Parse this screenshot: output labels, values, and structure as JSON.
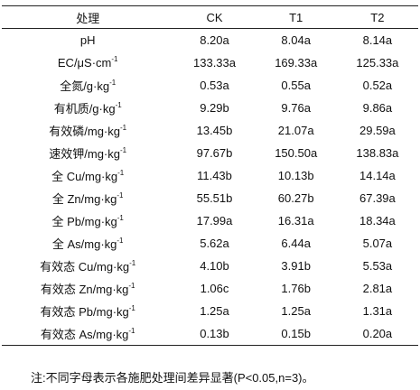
{
  "table": {
    "header": [
      "处理",
      "CK",
      "T1",
      "T2"
    ],
    "rows": [
      [
        {
          "text": "pH",
          "sup": null
        },
        "8.20a",
        "8.04a",
        "8.14a"
      ],
      [
        {
          "text": "EC/μS·cm",
          "sup": "-1"
        },
        "133.33a",
        "169.33a",
        "125.33a"
      ],
      [
        {
          "text": "全氮/g·kg",
          "sup": "-1"
        },
        "0.53a",
        "0.55a",
        "0.52a"
      ],
      [
        {
          "text": "有机质/g·kg",
          "sup": "-1"
        },
        "9.29b",
        "9.76a",
        "9.86a"
      ],
      [
        {
          "text": "有效磷/mg·kg",
          "sup": "-1"
        },
        "13.45b",
        "21.07a",
        "29.59a"
      ],
      [
        {
          "text": "速效钾/mg·kg",
          "sup": "-1"
        },
        "97.67b",
        "150.50a",
        "138.83a"
      ],
      [
        {
          "text": "全 Cu/mg·kg",
          "sup": "-1"
        },
        "11.43b",
        "10.13b",
        "14.14a"
      ],
      [
        {
          "text": "全 Zn/mg·kg",
          "sup": "-1"
        },
        "55.51b",
        "60.27b",
        "67.39a"
      ],
      [
        {
          "text": "全 Pb/mg·kg",
          "sup": "-1"
        },
        "17.99a",
        "16.31a",
        "18.34a"
      ],
      [
        {
          "text": "全 As/mg·kg",
          "sup": "-1"
        },
        "5.62a",
        "6.44a",
        "5.07a"
      ],
      [
        {
          "text": "有效态 Cu/mg·kg",
          "sup": "-1"
        },
        "4.10b",
        "3.91b",
        "5.53a"
      ],
      [
        {
          "text": "有效态 Zn/mg·kg",
          "sup": "-1"
        },
        "1.06c",
        "1.76b",
        "2.81a"
      ],
      [
        {
          "text": "有效态 Pb/mg·kg",
          "sup": "-1"
        },
        "1.25a",
        "1.25a",
        "1.31a"
      ],
      [
        {
          "text": "有效态 As/mg·kg",
          "sup": "-1"
        },
        "0.13b",
        "0.15b",
        "0.20a"
      ]
    ],
    "note": "注:不同字母表示各施肥处理间差异显著(P<0.05,n=3)。"
  }
}
